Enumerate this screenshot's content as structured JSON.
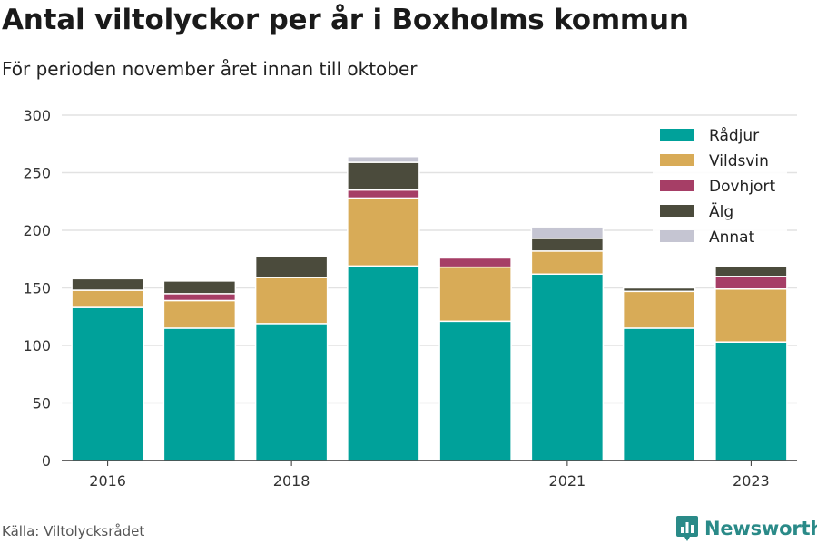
{
  "header": {
    "title": "Antal viltolyckor per år i Boxholms kommun",
    "subtitle": "För perioden november året innan till oktober"
  },
  "footer": {
    "source": "Källa: Viltolycksrådet",
    "brand": "Newsworthy",
    "brand_icon": "bar-chart-logo-icon"
  },
  "chart_data": {
    "type": "bar",
    "stacked": true,
    "categories": [
      "2016",
      "2017",
      "2018",
      "2019",
      "2020",
      "2021",
      "2022",
      "2023"
    ],
    "x_tick_labels": [
      "2016",
      "",
      "2018",
      "",
      "",
      "2021",
      "",
      "2023"
    ],
    "series": [
      {
        "name": "Rådjur",
        "color": "#00a19a",
        "values": [
          133,
          115,
          119,
          169,
          121,
          162,
          115,
          103
        ]
      },
      {
        "name": "Vildsvin",
        "color": "#d8ab57",
        "values": [
          15,
          24,
          40,
          59,
          47,
          20,
          32,
          46
        ]
      },
      {
        "name": "Dovhjort",
        "color": "#a63e66",
        "values": [
          0,
          6,
          0,
          7,
          8,
          0,
          0,
          11
        ]
      },
      {
        "name": "Älg",
        "color": "#4b4b3c",
        "values": [
          10,
          11,
          18,
          24,
          0,
          11,
          3,
          9
        ]
      },
      {
        "name": "Annat",
        "color": "#c5c5d2",
        "values": [
          0,
          0,
          0,
          5,
          0,
          10,
          0,
          0
        ]
      }
    ],
    "ylim": [
      0,
      300
    ],
    "yticks": [
      0,
      50,
      100,
      150,
      200,
      250,
      300
    ],
    "grid": true,
    "legend_position": "top-right"
  }
}
